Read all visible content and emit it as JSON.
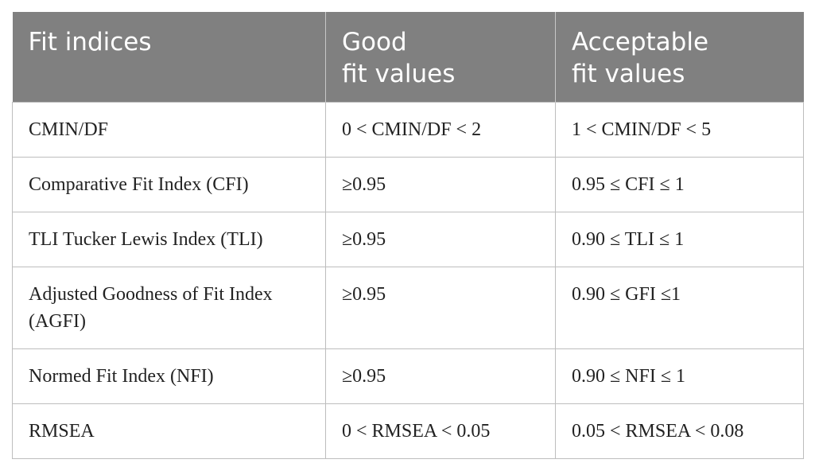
{
  "table": {
    "header": [
      "Fit indices",
      "Good\nfit values",
      "Acceptable\nfit values"
    ],
    "rows": [
      [
        "CMIN/DF",
        "0 < CMIN/DF < 2",
        "1 < CMIN/DF < 5"
      ],
      [
        "Comparative Fit Index (CFI)",
        "≥0.95",
        "0.95 ≤ CFI ≤ 1"
      ],
      [
        "TLI Tucker Lewis Index (TLI)",
        "≥0.95",
        "0.90 ≤ TLI ≤ 1"
      ],
      [
        "Adjusted Goodness of Fit Index (AGFI)",
        "≥0.95",
        "0.90 ≤ GFI ≤1"
      ],
      [
        "Normed Fit Index (NFI)",
        "≥0.95",
        "0.90 ≤ NFI ≤ 1"
      ],
      [
        "RMSEA",
        "0 < RMSEA < 0.05",
        "0.05 < RMSEA < 0.08"
      ]
    ]
  }
}
